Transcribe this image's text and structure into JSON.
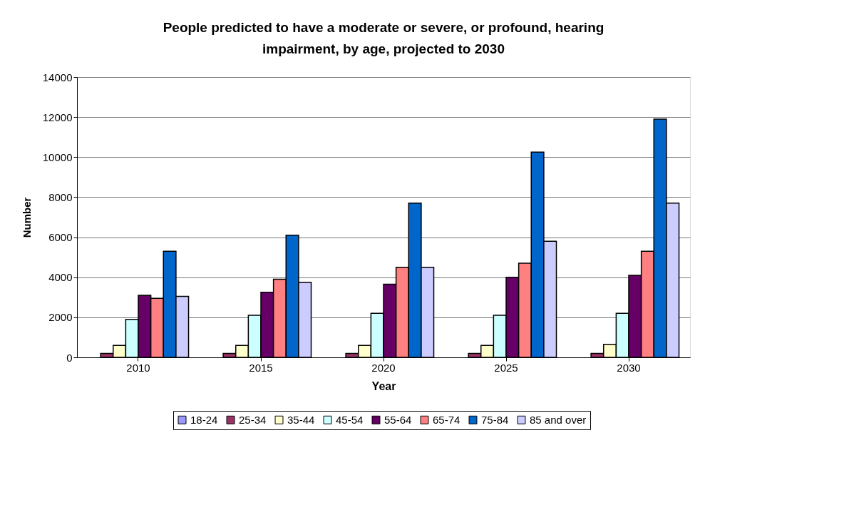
{
  "chart_data": {
    "type": "bar",
    "title": "People predicted to have a moderate or severe, or profound, hearing impairment, by age, projected to 2030",
    "xlabel": "Year",
    "ylabel": "Number",
    "categories": [
      "2010",
      "2015",
      "2020",
      "2025",
      "2030"
    ],
    "series": [
      {
        "name": "18-24",
        "color": "#9999ff",
        "values": [
          null,
          null,
          null,
          null,
          null
        ]
      },
      {
        "name": "25-34",
        "color": "#993366",
        "values": [
          200,
          200,
          200,
          200,
          200
        ]
      },
      {
        "name": "35-44",
        "color": "#ffffcc",
        "values": [
          600,
          600,
          600,
          600,
          650
        ]
      },
      {
        "name": "45-54",
        "color": "#ccffff",
        "values": [
          1900,
          2100,
          2200,
          2100,
          2200
        ]
      },
      {
        "name": "55-64",
        "color": "#660066",
        "values": [
          3100,
          3250,
          3650,
          4000,
          4100
        ]
      },
      {
        "name": "65-74",
        "color": "#ff8080",
        "values": [
          2950,
          3900,
          4500,
          4700,
          5300
        ]
      },
      {
        "name": "75-84",
        "color": "#0066cc",
        "values": [
          5300,
          6100,
          7700,
          10250,
          11900
        ]
      },
      {
        "name": "85 and over",
        "color": "#ccccff",
        "values": [
          3050,
          3750,
          4500,
          5800,
          7700
        ]
      }
    ],
    "ylim": [
      0,
      14000
    ],
    "yticks": [
      0,
      2000,
      4000,
      6000,
      8000,
      10000,
      12000,
      14000
    ],
    "grid": "y",
    "legend": "bottom"
  }
}
